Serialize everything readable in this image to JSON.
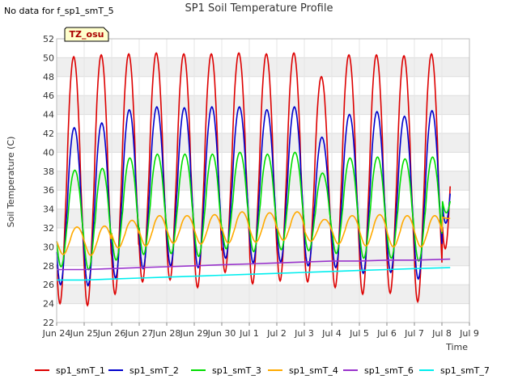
{
  "header": {
    "no_data_note": "No data for f_sp1_smT_5",
    "site_badge": "TZ_osu"
  },
  "colors": {
    "band": "#efefef",
    "badge_bg": "#ffffcc",
    "badge_text": "#aa0000"
  },
  "chart_data": {
    "type": "line",
    "title": "SP1 Soil Temperature Profile",
    "xlabel": "Time",
    "ylabel": "Soil Temperature (C)",
    "xlim": [
      "Jun 24",
      "Jul 9"
    ],
    "ylim": [
      22,
      52
    ],
    "x_ticks": [
      "Jun 24",
      "Jun 25",
      "Jun 26",
      "Jun 27",
      "Jun 28",
      "Jun 29",
      "Jun 30",
      "Jul 1",
      "Jul 2",
      "Jul 3",
      "Jul 4",
      "Jul 5",
      "Jul 6",
      "Jul 7",
      "Jul 8",
      "Jul 9"
    ],
    "y_ticks": [
      22,
      24,
      26,
      28,
      30,
      32,
      34,
      36,
      38,
      40,
      42,
      44,
      46,
      48,
      50,
      52
    ],
    "grid": true,
    "legend_position": "bottom",
    "series": [
      {
        "name": "sp1_smT_1",
        "color": "#dd0000",
        "daily_min": [
          24.0,
          23.8,
          25.0,
          26.3,
          26.5,
          25.7,
          27.3,
          26.1,
          26.4,
          26.3,
          25.7,
          25.0,
          25.1,
          24.2,
          29.8
        ],
        "daily_max": [
          50.1,
          50.3,
          50.4,
          50.5,
          50.4,
          50.4,
          50.5,
          50.4,
          50.5,
          48.0,
          50.3,
          50.3,
          50.2,
          50.4,
          50.4
        ]
      },
      {
        "name": "sp1_smT_2",
        "color": "#0000cc",
        "daily_min": [
          26.0,
          25.9,
          26.7,
          27.7,
          28.0,
          27.8,
          28.8,
          28.3,
          28.4,
          28.0,
          27.8,
          27.2,
          27.3,
          26.6,
          32.5
        ],
        "daily_max": [
          42.6,
          43.1,
          44.5,
          44.8,
          44.7,
          44.8,
          44.8,
          44.5,
          44.8,
          41.6,
          44.0,
          44.3,
          43.8,
          44.4,
          44.4
        ]
      },
      {
        "name": "sp1_smT_3",
        "color": "#00dd00",
        "daily_min": [
          27.9,
          27.6,
          28.6,
          29.2,
          29.3,
          29.0,
          29.8,
          29.5,
          29.7,
          29.6,
          29.3,
          28.8,
          28.8,
          28.5,
          33.6
        ],
        "daily_max": [
          38.1,
          38.3,
          39.4,
          39.8,
          39.8,
          39.8,
          40.0,
          39.8,
          40.0,
          37.8,
          39.4,
          39.5,
          39.3,
          39.5,
          39.5
        ]
      },
      {
        "name": "sp1_smT_4",
        "color": "#ffaa00",
        "daily_min": [
          29.2,
          29.1,
          29.9,
          30.1,
          30.4,
          30.3,
          30.4,
          30.5,
          30.7,
          30.6,
          30.3,
          30.1,
          30.0,
          30.0,
          33.0
        ],
        "daily_max": [
          32.1,
          32.2,
          32.8,
          33.3,
          33.3,
          33.4,
          33.7,
          33.6,
          33.7,
          32.9,
          33.3,
          33.4,
          33.3,
          33.3,
          33.3
        ]
      },
      {
        "name": "sp1_smT_6",
        "color": "#9933cc",
        "x_days": [
          0,
          1,
          2,
          3,
          4,
          5,
          6,
          7,
          8,
          9,
          10,
          11,
          12,
          13,
          14.3
        ],
        "values": [
          27.6,
          27.6,
          27.7,
          27.8,
          27.9,
          28.0,
          28.1,
          28.2,
          28.3,
          28.4,
          28.5,
          28.5,
          28.6,
          28.6,
          28.7
        ]
      },
      {
        "name": "sp1_smT_7",
        "color": "#00eeee",
        "x_days": [
          0,
          1,
          2,
          3,
          4,
          5,
          6,
          7,
          8,
          9,
          10,
          11,
          12,
          13,
          14.3
        ],
        "values": [
          26.5,
          26.5,
          26.6,
          26.7,
          26.8,
          26.9,
          27.0,
          27.1,
          27.2,
          27.3,
          27.4,
          27.5,
          27.6,
          27.7,
          27.8
        ]
      }
    ]
  }
}
